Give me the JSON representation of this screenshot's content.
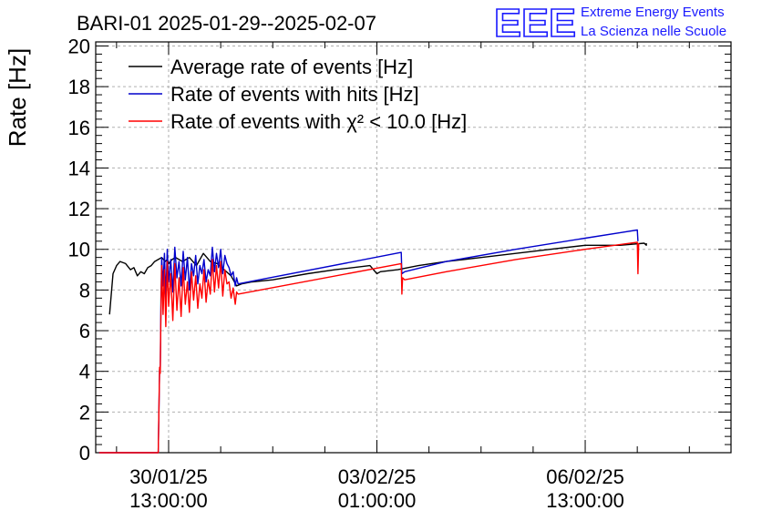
{
  "header": {
    "title": "BARI-01 2025-01-29--2025-02-07",
    "logo_letters": "EEE",
    "logo_line1": "Extreme Energy Events",
    "logo_line2": "La Scienza nelle Scuole"
  },
  "chart_data": {
    "type": "line",
    "title": "BARI-01 2025-01-29--2025-02-07",
    "xlabel": "",
    "ylabel": "Rate [Hz]",
    "ylim": [
      0,
      20.2
    ],
    "xlim": [
      -1.05,
      8.1
    ],
    "x_unit": "days since 30/01/25 13:00:00",
    "grid": true,
    "legend_position": "top-left",
    "y_ticks": [
      0,
      2,
      4,
      6,
      8,
      10,
      12,
      14,
      16,
      18,
      20
    ],
    "y_tick_labels": [
      "0",
      "2",
      "4",
      "6",
      "8",
      "10",
      "12",
      "14",
      "16",
      "18",
      "20"
    ],
    "x_ticks": [
      0,
      3,
      6
    ],
    "x_tick_labels": [
      {
        "date": "30/01/25",
        "time": "13:00:00"
      },
      {
        "date": "03/02/25",
        "time": "01:00:00"
      },
      {
        "date": "06/02/25",
        "time": "13:00:00"
      }
    ],
    "series": [
      {
        "name": "Average rate of events [Hz]",
        "color": "#000000",
        "x": [
          -0.85,
          -0.8,
          -0.75,
          -0.7,
          -0.62,
          -0.55,
          -0.5,
          -0.45,
          -0.4,
          -0.35,
          -0.3,
          -0.25,
          -0.2,
          -0.15,
          -0.1,
          -0.05,
          -0.02,
          0.0,
          0.05,
          0.1,
          0.2,
          0.3,
          0.4,
          0.5,
          0.6,
          0.7,
          0.8,
          0.9,
          0.98,
          1.05,
          1.2,
          1.5,
          2.0,
          2.4,
          2.9,
          3.0,
          3.05,
          3.3,
          3.6,
          4.0,
          4.5,
          5.0,
          5.5,
          6.0,
          6.5,
          6.85,
          6.88,
          6.88
        ],
        "values": [
          6.8,
          8.8,
          9.2,
          9.4,
          9.3,
          9.0,
          9.1,
          8.7,
          8.9,
          8.8,
          9.1,
          9.2,
          9.4,
          9.5,
          9.6,
          9.4,
          9.5,
          9.3,
          9.5,
          9.6,
          9.4,
          9.6,
          9.2,
          9.8,
          9.4,
          9.3,
          9.0,
          8.7,
          8.2,
          8.3,
          8.4,
          8.5,
          8.8,
          9.0,
          9.2,
          8.8,
          8.9,
          9.0,
          9.2,
          9.4,
          9.6,
          9.8,
          10.0,
          10.2,
          10.2,
          10.3,
          10.2,
          10.3
        ]
      },
      {
        "name": "Rate of events with hits [Hz]",
        "color": "#0000cc",
        "x": [
          -1.0,
          -0.15,
          -0.13,
          -0.12,
          -0.11,
          -0.1,
          -0.08,
          -0.06,
          -0.04,
          -0.02,
          0.0,
          0.03,
          0.06,
          0.09,
          0.12,
          0.15,
          0.18,
          0.21,
          0.24,
          0.27,
          0.3,
          0.33,
          0.36,
          0.39,
          0.42,
          0.45,
          0.48,
          0.51,
          0.54,
          0.57,
          0.6,
          0.63,
          0.66,
          0.69,
          0.72,
          0.75,
          0.78,
          0.81,
          0.84,
          0.87,
          0.9,
          0.93,
          0.96,
          0.98,
          1.0,
          3.35,
          3.36,
          3.4,
          4.0,
          5.0,
          6.0,
          6.75,
          6.76
        ],
        "values": [
          0,
          0,
          4.1,
          4.0,
          7.5,
          9.6,
          8.2,
          9.8,
          7.6,
          10.0,
          8.4,
          9.5,
          7.9,
          10.1,
          8.6,
          9.4,
          8.2,
          9.9,
          8.5,
          9.6,
          8.0,
          9.3,
          8.7,
          9.7,
          8.3,
          9.2,
          8.8,
          9.5,
          8.4,
          9.0,
          8.7,
          10.1,
          8.9,
          9.8,
          9.1,
          10.0,
          8.8,
          9.7,
          9.3,
          9.1,
          8.7,
          8.9,
          8.2,
          8.6,
          8.3,
          9.85,
          8.8,
          8.9,
          9.4,
          10.0,
          10.55,
          10.95,
          10.4
        ]
      },
      {
        "name": "Rate of events with χ² < 10.0 [Hz]",
        "color": "#ff0000",
        "x": [
          -1.0,
          -0.15,
          -0.13,
          -0.12,
          -0.11,
          -0.1,
          -0.08,
          -0.06,
          -0.04,
          -0.02,
          0.0,
          0.03,
          0.06,
          0.09,
          0.12,
          0.15,
          0.18,
          0.21,
          0.24,
          0.27,
          0.3,
          0.33,
          0.36,
          0.39,
          0.42,
          0.45,
          0.48,
          0.51,
          0.54,
          0.57,
          0.6,
          0.63,
          0.66,
          0.69,
          0.72,
          0.75,
          0.78,
          0.81,
          0.84,
          0.87,
          0.9,
          0.93,
          0.96,
          0.98,
          1.0,
          3.35,
          3.36,
          3.37,
          3.4,
          4.0,
          5.0,
          6.0,
          6.75,
          6.76,
          6.77
        ],
        "values": [
          0,
          0,
          4.2,
          3.9,
          7.0,
          9.2,
          6.8,
          9.0,
          6.2,
          9.4,
          7.2,
          8.8,
          6.5,
          9.3,
          7.0,
          8.6,
          6.7,
          9.1,
          7.3,
          8.4,
          6.9,
          8.9,
          7.5,
          8.7,
          7.1,
          8.3,
          7.6,
          9.0,
          7.4,
          8.5,
          7.8,
          9.5,
          7.9,
          9.2,
          8.1,
          9.4,
          7.7,
          9.0,
          8.3,
          8.4,
          7.6,
          8.1,
          7.3,
          7.9,
          7.8,
          9.3,
          7.8,
          8.6,
          8.5,
          8.9,
          9.5,
          10.0,
          10.35,
          8.8,
          10.3
        ]
      }
    ]
  }
}
